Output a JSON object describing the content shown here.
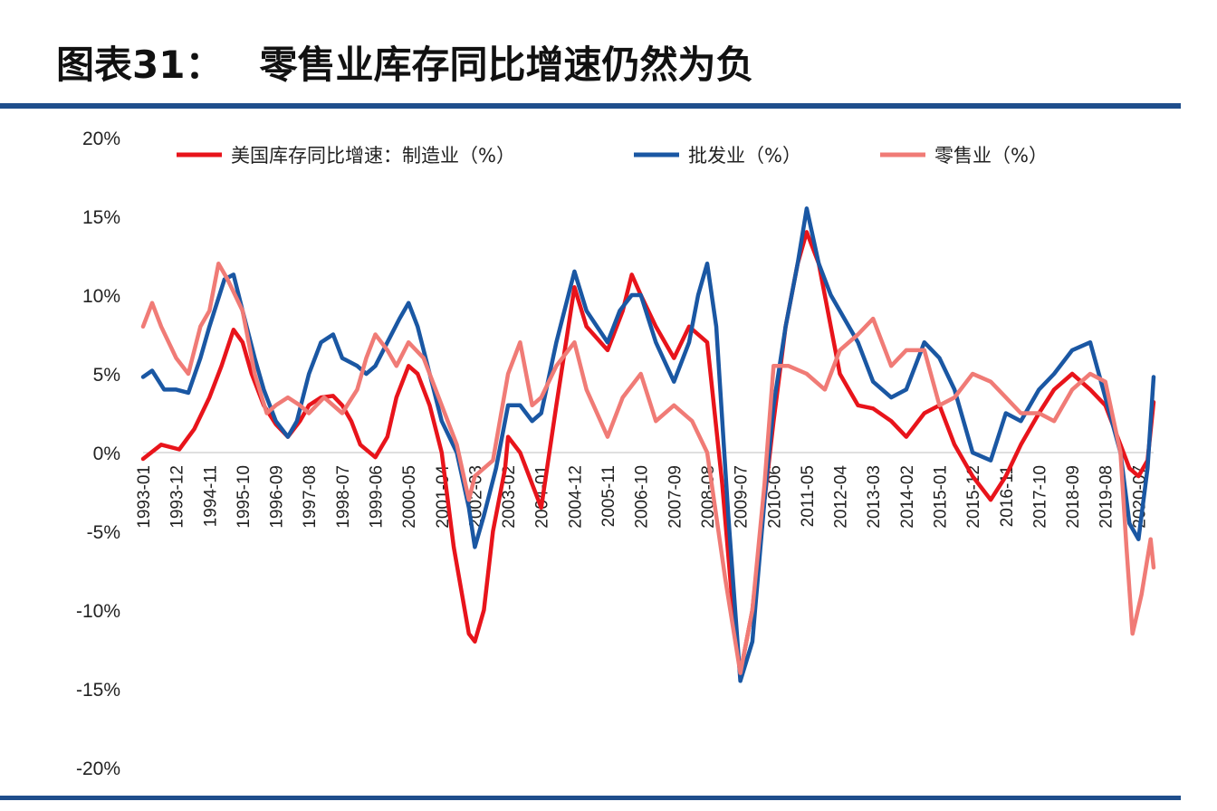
{
  "header": {
    "figure_label": "图表31：",
    "title": "零售业库存同比增速仍然为负"
  },
  "colors": {
    "manufacturing": "#e8141b",
    "wholesale": "#1a57a3",
    "retail": "#f07b76",
    "rule": "#1f4e8c"
  },
  "chart_data": {
    "type": "line",
    "title": "零售业库存同比增速仍然为负",
    "xlabel": "",
    "ylabel": "",
    "ylim": [
      -20,
      20
    ],
    "yticks": [
      -20,
      -15,
      -10,
      -5,
      0,
      5,
      10,
      15,
      20
    ],
    "ytick_labels": [
      "-20%",
      "-15%",
      "-10%",
      "-5%",
      "0%",
      "5%",
      "10%",
      "15%",
      "20%"
    ],
    "x_tick_labels": [
      "1993-01",
      "1993-12",
      "1994-11",
      "1995-10",
      "1996-09",
      "1997-08",
      "1998-07",
      "1999-06",
      "2000-05",
      "2001-04",
      "2002-03",
      "2003-02",
      "2004-01",
      "2004-12",
      "2005-11",
      "2006-10",
      "2007-09",
      "2008-08",
      "2009-07",
      "2010-06",
      "2011-05",
      "2012-04",
      "2013-03",
      "2014-02",
      "2015-01",
      "2015-12",
      "2016-11",
      "2017-10",
      "2018-09",
      "2019-08",
      "2020-07"
    ],
    "x_start": "1993-01",
    "x_end": "2020-12",
    "grid": false,
    "legend_position": "top",
    "series": [
      {
        "name": "美国库存同比增速：制造业（%）",
        "color": "#e8141b",
        "points": [
          [
            "1993-01",
            -0.4
          ],
          [
            "1993-07",
            0.5
          ],
          [
            "1994-01",
            0.2
          ],
          [
            "1994-06",
            1.5
          ],
          [
            "1994-11",
            3.5
          ],
          [
            "1995-03",
            5.5
          ],
          [
            "1995-07",
            7.8
          ],
          [
            "1995-10",
            7.0
          ],
          [
            "1996-01",
            5.0
          ],
          [
            "1996-05",
            3.0
          ],
          [
            "1996-09",
            1.8
          ],
          [
            "1997-01",
            1.0
          ],
          [
            "1997-05",
            2.0
          ],
          [
            "1997-08",
            3.0
          ],
          [
            "1997-12",
            3.5
          ],
          [
            "1998-04",
            3.6
          ],
          [
            "1998-07",
            3.0
          ],
          [
            "1998-10",
            2.0
          ],
          [
            "1999-01",
            0.5
          ],
          [
            "1999-06",
            -0.3
          ],
          [
            "1999-10",
            1.0
          ],
          [
            "2000-01",
            3.5
          ],
          [
            "2000-05",
            5.5
          ],
          [
            "2000-08",
            5.0
          ],
          [
            "2000-12",
            3.0
          ],
          [
            "2001-04",
            0.0
          ],
          [
            "2001-08",
            -6.0
          ],
          [
            "2002-01",
            -11.5
          ],
          [
            "2002-03",
            -12.0
          ],
          [
            "2002-06",
            -10.0
          ],
          [
            "2002-09",
            -5.0
          ],
          [
            "2003-01",
            -1.0
          ],
          [
            "2003-02",
            1.0
          ],
          [
            "2003-06",
            0.0
          ],
          [
            "2003-10",
            -2.0
          ],
          [
            "2004-01",
            -3.5
          ],
          [
            "2004-06",
            3.0
          ],
          [
            "2004-12",
            10.5
          ],
          [
            "2005-04",
            8.0
          ],
          [
            "2005-11",
            6.5
          ],
          [
            "2006-04",
            9.0
          ],
          [
            "2006-07",
            11.3
          ],
          [
            "2006-10",
            10.0
          ],
          [
            "2007-03",
            8.0
          ],
          [
            "2007-09",
            6.0
          ],
          [
            "2008-02",
            8.0
          ],
          [
            "2008-08",
            7.0
          ],
          [
            "2009-01",
            -2.0
          ],
          [
            "2009-05",
            -11.0
          ],
          [
            "2009-07",
            -14.0
          ],
          [
            "2009-11",
            -10.0
          ],
          [
            "2010-03",
            -3.0
          ],
          [
            "2010-06",
            2.0
          ],
          [
            "2010-10",
            8.0
          ],
          [
            "2011-02",
            12.0
          ],
          [
            "2011-05",
            14.0
          ],
          [
            "2011-09",
            12.0
          ],
          [
            "2012-01",
            8.0
          ],
          [
            "2012-04",
            5.0
          ],
          [
            "2012-10",
            3.0
          ],
          [
            "2013-03",
            2.8
          ],
          [
            "2013-09",
            2.0
          ],
          [
            "2014-02",
            1.0
          ],
          [
            "2014-08",
            2.5
          ],
          [
            "2015-01",
            3.0
          ],
          [
            "2015-06",
            0.5
          ],
          [
            "2015-12",
            -1.5
          ],
          [
            "2016-06",
            -3.0
          ],
          [
            "2016-11",
            -1.5
          ],
          [
            "2017-04",
            0.5
          ],
          [
            "2017-10",
            2.5
          ],
          [
            "2018-03",
            4.0
          ],
          [
            "2018-09",
            5.0
          ],
          [
            "2019-03",
            4.0
          ],
          [
            "2019-08",
            3.0
          ],
          [
            "2020-01",
            0.5
          ],
          [
            "2020-04",
            -1.0
          ],
          [
            "2020-07",
            -1.5
          ],
          [
            "2020-10",
            -0.5
          ],
          [
            "2020-12",
            3.2
          ]
        ]
      },
      {
        "name": "批发业（%）",
        "color": "#1a57a3",
        "points": [
          [
            "1993-01",
            4.8
          ],
          [
            "1993-04",
            5.2
          ],
          [
            "1993-08",
            4.0
          ],
          [
            "1993-12",
            4.0
          ],
          [
            "1994-04",
            3.8
          ],
          [
            "1994-08",
            6.0
          ],
          [
            "1994-11",
            8.0
          ],
          [
            "1995-04",
            11.0
          ],
          [
            "1995-07",
            11.3
          ],
          [
            "1995-10",
            9.0
          ],
          [
            "1996-02",
            6.0
          ],
          [
            "1996-05",
            4.0
          ],
          [
            "1996-09",
            2.0
          ],
          [
            "1997-01",
            1.0
          ],
          [
            "1997-04",
            2.0
          ],
          [
            "1997-08",
            5.0
          ],
          [
            "1997-12",
            7.0
          ],
          [
            "1998-04",
            7.5
          ],
          [
            "1998-07",
            6.0
          ],
          [
            "1998-12",
            5.5
          ],
          [
            "1999-03",
            5.0
          ],
          [
            "1999-06",
            5.5
          ],
          [
            "1999-10",
            7.0
          ],
          [
            "2000-02",
            8.5
          ],
          [
            "2000-05",
            9.5
          ],
          [
            "2000-08",
            8.0
          ],
          [
            "2000-12",
            5.0
          ],
          [
            "2001-04",
            2.0
          ],
          [
            "2001-09",
            0.0
          ],
          [
            "2002-01",
            -3.5
          ],
          [
            "2002-03",
            -6.0
          ],
          [
            "2002-06",
            -4.0
          ],
          [
            "2002-10",
            -1.0
          ],
          [
            "2003-02",
            3.0
          ],
          [
            "2003-06",
            3.0
          ],
          [
            "2003-10",
            2.0
          ],
          [
            "2004-01",
            2.5
          ],
          [
            "2004-06",
            7.0
          ],
          [
            "2004-12",
            11.5
          ],
          [
            "2005-04",
            9.0
          ],
          [
            "2005-11",
            7.0
          ],
          [
            "2006-03",
            9.0
          ],
          [
            "2006-07",
            10.0
          ],
          [
            "2006-10",
            10.0
          ],
          [
            "2007-03",
            7.0
          ],
          [
            "2007-09",
            4.5
          ],
          [
            "2008-02",
            7.0
          ],
          [
            "2008-05",
            10.0
          ],
          [
            "2008-08",
            12.0
          ],
          [
            "2008-11",
            8.0
          ],
          [
            "2009-03",
            -4.0
          ],
          [
            "2009-07",
            -14.5
          ],
          [
            "2009-11",
            -12.0
          ],
          [
            "2010-03",
            -3.0
          ],
          [
            "2010-06",
            3.0
          ],
          [
            "2010-10",
            8.0
          ],
          [
            "2011-02",
            12.0
          ],
          [
            "2011-05",
            15.5
          ],
          [
            "2011-09",
            12.0
          ],
          [
            "2012-01",
            10.0
          ],
          [
            "2012-04",
            9.0
          ],
          [
            "2012-10",
            7.0
          ],
          [
            "2013-03",
            4.5
          ],
          [
            "2013-09",
            3.5
          ],
          [
            "2014-02",
            4.0
          ],
          [
            "2014-08",
            7.0
          ],
          [
            "2015-01",
            6.0
          ],
          [
            "2015-06",
            4.0
          ],
          [
            "2015-12",
            0.0
          ],
          [
            "2016-06",
            -0.5
          ],
          [
            "2016-11",
            2.5
          ],
          [
            "2017-04",
            2.0
          ],
          [
            "2017-10",
            4.0
          ],
          [
            "2018-03",
            5.0
          ],
          [
            "2018-09",
            6.5
          ],
          [
            "2019-03",
            7.0
          ],
          [
            "2019-08",
            3.5
          ],
          [
            "2020-01",
            0.0
          ],
          [
            "2020-04",
            -4.5
          ],
          [
            "2020-07",
            -5.5
          ],
          [
            "2020-10",
            -1.0
          ],
          [
            "2020-12",
            4.8
          ]
        ]
      },
      {
        "name": "零售业（%）",
        "color": "#f07b76",
        "points": [
          [
            "1993-01",
            8.0
          ],
          [
            "1993-04",
            9.5
          ],
          [
            "1993-07",
            8.0
          ],
          [
            "1993-12",
            6.0
          ],
          [
            "1994-04",
            5.0
          ],
          [
            "1994-08",
            8.0
          ],
          [
            "1994-11",
            9.0
          ],
          [
            "1995-02",
            12.0
          ],
          [
            "1995-05",
            11.0
          ],
          [
            "1995-10",
            9.0
          ],
          [
            "1996-02",
            5.0
          ],
          [
            "1996-06",
            2.5
          ],
          [
            "1996-09",
            3.0
          ],
          [
            "1997-01",
            3.5
          ],
          [
            "1997-05",
            3.0
          ],
          [
            "1997-08",
            2.5
          ],
          [
            "1998-01",
            3.5
          ],
          [
            "1998-07",
            2.5
          ],
          [
            "1998-12",
            4.0
          ],
          [
            "1999-03",
            6.0
          ],
          [
            "1999-06",
            7.5
          ],
          [
            "1999-10",
            6.5
          ],
          [
            "2000-01",
            5.5
          ],
          [
            "2000-05",
            7.0
          ],
          [
            "2000-10",
            6.0
          ],
          [
            "2001-04",
            3.0
          ],
          [
            "2001-09",
            0.5
          ],
          [
            "2002-01",
            -3.0
          ],
          [
            "2002-03",
            -1.5
          ],
          [
            "2002-09",
            -0.5
          ],
          [
            "2003-02",
            5.0
          ],
          [
            "2003-06",
            7.0
          ],
          [
            "2003-10",
            3.0
          ],
          [
            "2004-01",
            3.5
          ],
          [
            "2004-06",
            5.5
          ],
          [
            "2004-12",
            7.0
          ],
          [
            "2005-04",
            4.0
          ],
          [
            "2005-11",
            1.0
          ],
          [
            "2006-04",
            3.5
          ],
          [
            "2006-10",
            5.0
          ],
          [
            "2007-03",
            2.0
          ],
          [
            "2007-09",
            3.0
          ],
          [
            "2008-03",
            2.0
          ],
          [
            "2008-08",
            0.0
          ],
          [
            "2009-02",
            -8.0
          ],
          [
            "2009-07",
            -14.0
          ],
          [
            "2009-11",
            -10.0
          ],
          [
            "2010-03",
            -2.0
          ],
          [
            "2010-06",
            5.5
          ],
          [
            "2010-11",
            5.5
          ],
          [
            "2011-05",
            5.0
          ],
          [
            "2011-11",
            4.0
          ],
          [
            "2012-04",
            6.5
          ],
          [
            "2012-10",
            7.5
          ],
          [
            "2013-03",
            8.5
          ],
          [
            "2013-09",
            5.5
          ],
          [
            "2014-02",
            6.5
          ],
          [
            "2014-08",
            6.5
          ],
          [
            "2015-01",
            3.0
          ],
          [
            "2015-06",
            3.5
          ],
          [
            "2015-12",
            5.0
          ],
          [
            "2016-06",
            4.5
          ],
          [
            "2016-11",
            3.5
          ],
          [
            "2017-04",
            2.5
          ],
          [
            "2017-10",
            2.5
          ],
          [
            "2018-03",
            2.0
          ],
          [
            "2018-09",
            4.0
          ],
          [
            "2019-03",
            5.0
          ],
          [
            "2019-08",
            4.5
          ],
          [
            "2020-01",
            0.0
          ],
          [
            "2020-03",
            -6.0
          ],
          [
            "2020-05",
            -11.5
          ],
          [
            "2020-08",
            -9.0
          ],
          [
            "2020-11",
            -5.5
          ],
          [
            "2020-12",
            -7.3
          ]
        ]
      }
    ]
  }
}
